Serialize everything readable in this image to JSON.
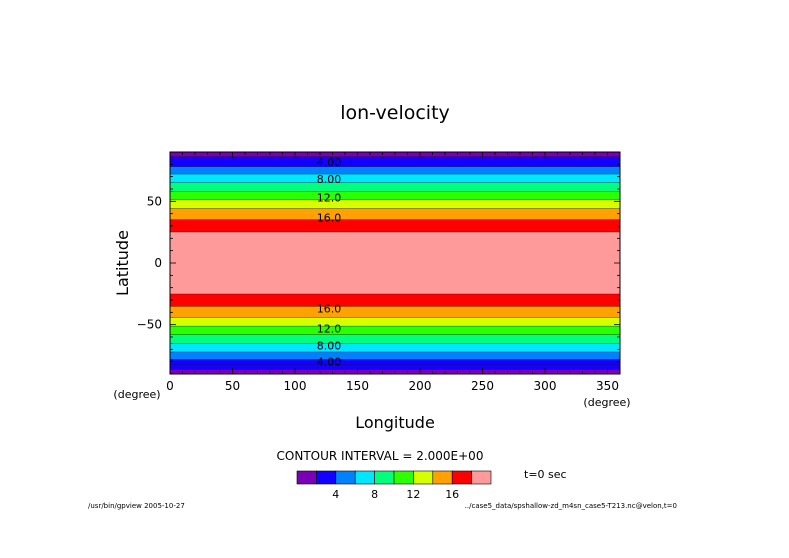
{
  "chart_data": {
    "type": "heatmap",
    "title": "lon-velocity",
    "xlabel": "Longitude",
    "ylabel": "Latitude",
    "x_unit": "(degree)",
    "y_unit": "(degree)",
    "xlim": [
      0,
      360
    ],
    "ylim": [
      -90,
      90
    ],
    "x_ticks": [
      0,
      50,
      100,
      150,
      200,
      250,
      300,
      350
    ],
    "y_ticks": [
      -50,
      0,
      50
    ],
    "contour_interval_text": "CONTOUR INTERVAL = 2.000E+00",
    "time_text": "t=0 sec",
    "contour_levels": [
      0,
      2,
      4,
      6,
      8,
      10,
      12,
      14,
      16,
      18
    ],
    "colors": [
      "#7a00b8",
      "#1400ff",
      "#0082ff",
      "#00e6ff",
      "#00ff7c",
      "#2bff00",
      "#d6ff00",
      "#ffa200",
      "#ff0000",
      "#ff9a9a"
    ],
    "colorbar_labels": [
      "4",
      "8",
      "12",
      "16"
    ],
    "colorbar_label_levels": [
      4,
      8,
      12,
      16
    ],
    "bands_north": [
      {
        "from": 90,
        "to": 86,
        "value_bin": 0
      },
      {
        "from": 86,
        "to": 82,
        "value_bin": 1
      },
      {
        "from": 82,
        "to": 78,
        "value_bin": 1
      },
      {
        "from": 78,
        "to": 72,
        "value_bin": 2
      },
      {
        "from": 72,
        "to": 65,
        "value_bin": 3
      },
      {
        "from": 65,
        "to": 58,
        "value_bin": 4
      },
      {
        "from": 58,
        "to": 51,
        "value_bin": 5
      },
      {
        "from": 51,
        "to": 44,
        "value_bin": 6
      },
      {
        "from": 44,
        "to": 35,
        "value_bin": 7
      },
      {
        "from": 35,
        "to": 25,
        "value_bin": 8
      },
      {
        "from": 25,
        "to": 0,
        "value_bin": 9
      }
    ],
    "contour_labels": [
      {
        "text": "4.00",
        "lat": 82
      },
      {
        "text": "8.00",
        "lat": 68
      },
      {
        "text": "12.0",
        "lat": 53
      },
      {
        "text": "16.0",
        "lat": 37
      },
      {
        "text": "16.0",
        "lat": -37
      },
      {
        "text": "12.0",
        "lat": -53
      },
      {
        "text": "8.00",
        "lat": -67
      },
      {
        "text": "4.00",
        "lat": -80
      }
    ],
    "grid": false
  },
  "footer": {
    "left": "/usr/bin/gpview  2005-10-27",
    "right": "../case5_data/spshallow-zd_m4sn_case5-T213.nc@velon,t=0"
  }
}
